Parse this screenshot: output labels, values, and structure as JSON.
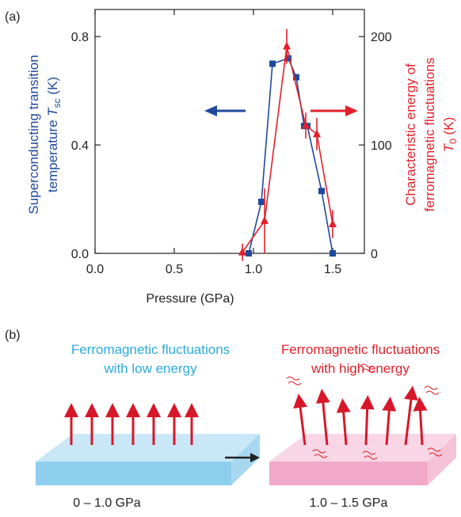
{
  "panel_labels": [
    "(a)",
    "(b)"
  ],
  "chart_data": {
    "type": "line",
    "xlabel": "Pressure (GPa)",
    "ylabel": {
      "line1": "Superconducting transition",
      "line2": "temperature ",
      "symbol": "T",
      "subscript": "sc",
      "unit": " (K)"
    },
    "y2label": {
      "line1": "Characteristic energy of",
      "line2": "ferromagnetic fluctuations",
      "symbol": "T",
      "subscript": "0",
      "unit": " (K)"
    },
    "xlim": [
      0,
      1.7
    ],
    "ylim": [
      0,
      0.9
    ],
    "y2lim": [
      0,
      225
    ],
    "xticks": [
      {
        "value": 0,
        "label": "0.0"
      },
      {
        "value": 0.5,
        "label": "0.5"
      },
      {
        "value": 1,
        "label": "1.0"
      },
      {
        "value": 1.5,
        "label": "1.5"
      }
    ],
    "yticks": [
      {
        "value": 0,
        "label": "0.0"
      },
      {
        "value": 0.4,
        "label": "0.4"
      },
      {
        "value": 0.8,
        "label": "0.8"
      }
    ],
    "y2ticks": [
      0,
      100,
      200
    ],
    "series": [
      {
        "color": "#1f4a9c",
        "marker": "square",
        "x": [
          0.97,
          1.05,
          1.12,
          1.22,
          1.27,
          1.32,
          1.34,
          1.43,
          1.5
        ],
        "values": [
          0.0,
          0.19,
          0.7,
          0.72,
          0.65,
          0.47,
          0.47,
          0.23,
          0.0
        ]
      },
      {
        "color": "#e3202b",
        "marker": "triangle",
        "axis": "y2",
        "x": [
          0.93,
          1.07,
          1.21,
          1.33,
          1.4,
          1.5
        ],
        "values": [
          1,
          30,
          191,
          118,
          110,
          27
        ],
        "errors": [
          8,
          30,
          16,
          12,
          15,
          13
        ]
      }
    ]
  },
  "diagram": {
    "left": {
      "title1": "Ferromagnetic fluctuations",
      "title2": "with low energy",
      "caption": "0 – 1.0 GPa"
    },
    "right": {
      "title1": "Ferromagnetic fluctuations",
      "title2": "with high energy",
      "caption": "1.0 – 1.5 GPa"
    }
  }
}
